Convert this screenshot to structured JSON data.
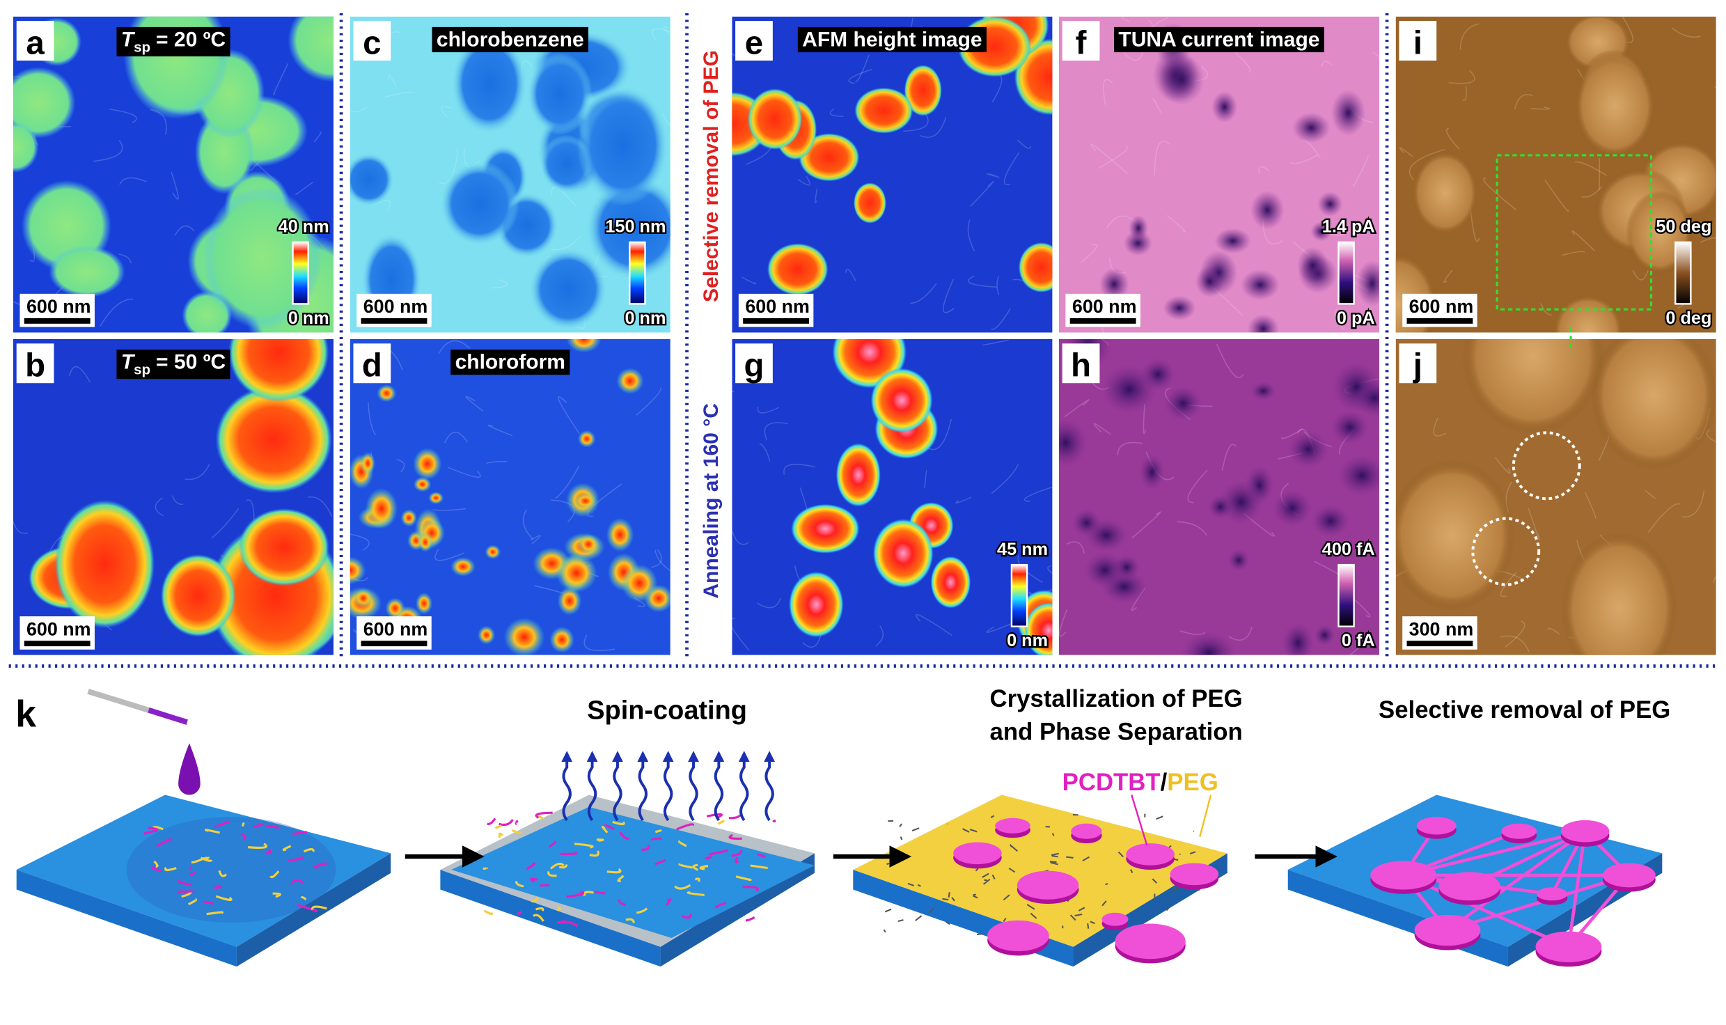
{
  "side_labels": {
    "top": "Selective removal of PEG",
    "bottom": "Annealing at 160 °C"
  },
  "panels": [
    {
      "letter": "a",
      "title": {
        "symbol": "T",
        "subscript": "sp",
        "rest": "= 20 ºC"
      },
      "scale_bar": "600 nm",
      "colorbar": {
        "top": "40 nm",
        "bottom": "0 nm"
      }
    },
    {
      "letter": "b",
      "title": {
        "symbol": "T",
        "subscript": "sp",
        "rest": "= 50 ºC"
      },
      "scale_bar": "600 nm"
    },
    {
      "letter": "c",
      "title": {
        "text": "chlorobenzene"
      },
      "scale_bar": "600 nm",
      "colorbar": {
        "top": "150 nm",
        "bottom": "0 nm"
      }
    },
    {
      "letter": "d",
      "title": {
        "text": "chloroform"
      },
      "scale_bar": "600 nm"
    },
    {
      "letter": "e",
      "title": {
        "text": "AFM height image"
      },
      "scale_bar": "600 nm"
    },
    {
      "letter": "f",
      "title": {
        "text": "TUNA current image"
      },
      "scale_bar": "600 nm",
      "colorbar": {
        "top": "1.4 pA",
        "bottom": "0 pA"
      }
    },
    {
      "letter": "g",
      "colorbar": {
        "top": "45 nm",
        "bottom": "0 nm"
      }
    },
    {
      "letter": "h",
      "colorbar": {
        "top": "400 fA",
        "bottom": "0 fA"
      }
    },
    {
      "letter": "i",
      "scale_bar": "600 nm",
      "colorbar": {
        "top": "50 deg",
        "bottom": "0 deg"
      }
    },
    {
      "letter": "j",
      "scale_bar": "300 nm"
    }
  ],
  "schematic": {
    "letter": "k",
    "steps": [
      "Spin-coating",
      "Crystallization of PEG",
      "and Phase Separation",
      "Selective removal of PEG"
    ],
    "legend": {
      "first": "PCDTBT",
      "separator": "/",
      "second": "PEG"
    }
  }
}
